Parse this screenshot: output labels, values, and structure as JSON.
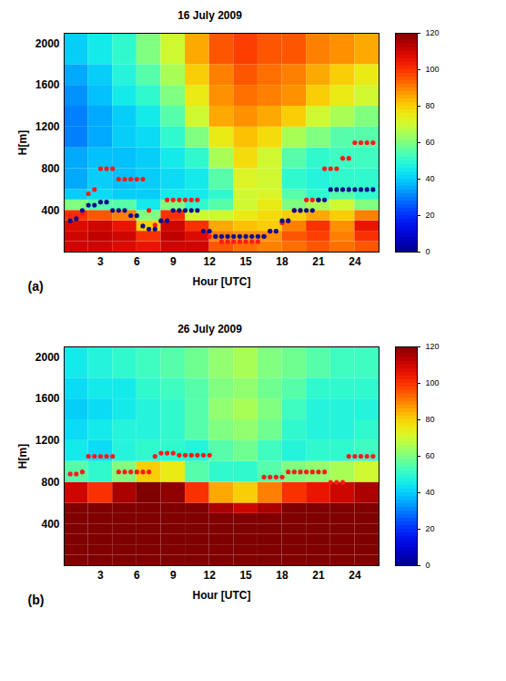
{
  "chart_data": [
    {
      "type": "heatmap",
      "title": "16 July 2009",
      "panel_label": "(a)",
      "x_label": "Hour [UTC]",
      "y_label": "H[m]",
      "xlim": [
        0,
        26
      ],
      "xticks": [
        3,
        6,
        9,
        12,
        15,
        18,
        21,
        24
      ],
      "ylim": [
        0,
        2100
      ],
      "yticks": [
        400,
        800,
        1200,
        1600,
        2000
      ],
      "x": [
        0.5,
        1,
        1.5,
        2,
        2.5,
        3,
        3.5,
        4,
        4.5,
        5,
        5.5,
        6,
        6.5,
        7,
        7.5,
        8,
        8.5,
        9,
        9.5,
        10,
        10.5,
        11,
        11.5,
        12,
        12.5,
        13,
        13.5,
        14,
        14.5,
        15,
        15.5,
        16,
        16.5,
        17,
        17.5,
        18,
        18.5,
        19,
        19.5,
        20,
        20.5,
        21,
        21.5,
        22,
        22.5,
        23,
        23.5,
        24,
        24.5,
        25,
        25.5
      ],
      "series": [
        {
          "color": "#ff1a1a",
          "marker": "circle",
          "values": [
            350,
            350,
            370,
            560,
            600,
            800,
            800,
            800,
            700,
            700,
            700,
            700,
            700,
            400,
            260,
            300,
            500,
            500,
            500,
            500,
            500,
            500,
            200,
            150,
            150,
            100,
            100,
            100,
            100,
            100,
            100,
            100,
            150,
            200,
            200,
            280,
            300,
            400,
            400,
            500,
            500,
            500,
            800,
            800,
            800,
            900,
            900,
            1050,
            1050,
            1050,
            1050
          ]
        },
        {
          "color": "#10108c",
          "marker": "circle",
          "values": [
            300,
            320,
            400,
            450,
            450,
            480,
            480,
            400,
            400,
            400,
            350,
            350,
            250,
            220,
            220,
            300,
            300,
            400,
            400,
            400,
            400,
            400,
            200,
            200,
            150,
            150,
            150,
            150,
            150,
            150,
            150,
            150,
            150,
            200,
            200,
            300,
            300,
            400,
            400,
            400,
            400,
            500,
            500,
            600,
            600,
            600,
            600,
            600,
            600,
            600,
            600
          ]
        }
      ],
      "heatmap": {
        "x_edges": [
          0,
          2,
          4,
          6,
          8,
          10,
          12,
          14,
          16,
          18,
          20,
          22,
          24,
          26
        ],
        "y_edges": [
          0,
          100,
          200,
          300,
          400,
          500,
          600,
          800,
          1000,
          1200,
          1400,
          1600,
          1800,
          2100
        ],
        "cells": [
          [
            110,
            110,
            108,
            105,
            110,
            110,
            95,
            92,
            90,
            92,
            95,
            92,
            95
          ],
          [
            110,
            112,
            110,
            100,
            112,
            108,
            90,
            88,
            88,
            95,
            98,
            90,
            100
          ],
          [
            108,
            110,
            105,
            80,
            110,
            100,
            85,
            82,
            80,
            90,
            100,
            88,
            105
          ],
          [
            100,
            95,
            90,
            60,
            100,
            70,
            70,
            75,
            78,
            80,
            85,
            80,
            90
          ],
          [
            60,
            55,
            55,
            45,
            60,
            50,
            55,
            70,
            75,
            60,
            65,
            70,
            60
          ],
          [
            40,
            42,
            40,
            40,
            45,
            45,
            50,
            70,
            72,
            55,
            50,
            55,
            50
          ],
          [
            35,
            40,
            38,
            40,
            42,
            45,
            55,
            72,
            70,
            50,
            48,
            50,
            50
          ],
          [
            35,
            38,
            38,
            40,
            45,
            50,
            65,
            78,
            70,
            55,
            50,
            52,
            52
          ],
          [
            30,
            35,
            40,
            42,
            50,
            60,
            75,
            82,
            78,
            65,
            60,
            55,
            55
          ],
          [
            30,
            35,
            40,
            45,
            55,
            70,
            85,
            88,
            85,
            80,
            70,
            65,
            60
          ],
          [
            32,
            38,
            45,
            50,
            60,
            75,
            88,
            92,
            90,
            88,
            80,
            75,
            70
          ],
          [
            35,
            40,
            48,
            55,
            65,
            80,
            90,
            95,
            92,
            90,
            85,
            80,
            75
          ],
          [
            40,
            45,
            50,
            60,
            70,
            85,
            95,
            98,
            95,
            95,
            90,
            88,
            85
          ]
        ]
      },
      "colorbar": {
        "range": [
          0,
          120
        ],
        "ticks": [
          0,
          20,
          40,
          60,
          80,
          100,
          120
        ]
      }
    },
    {
      "type": "heatmap",
      "title": "26 July 2009",
      "panel_label": "(b)",
      "x_label": "Hour [UTC]",
      "y_label": "H[m]",
      "xlim": [
        0,
        26
      ],
      "xticks": [
        3,
        6,
        9,
        12,
        15,
        18,
        21,
        24
      ],
      "ylim": [
        0,
        2100
      ],
      "yticks": [
        400,
        800,
        1200,
        1600,
        2000
      ],
      "x": [
        0.5,
        1,
        1.5,
        2,
        2.5,
        3,
        3.5,
        4,
        4.5,
        5,
        5.5,
        6,
        6.5,
        7,
        7.5,
        8,
        8.5,
        9,
        9.5,
        10,
        10.5,
        11,
        11.5,
        12,
        12.5,
        13,
        13.5,
        14,
        14.5,
        15,
        15.5,
        16,
        16.5,
        17,
        17.5,
        18,
        18.5,
        19,
        19.5,
        20,
        20.5,
        21,
        21.5,
        22,
        22.5,
        23,
        23.5,
        24,
        24.5,
        25,
        25.5
      ],
      "series": [
        {
          "color": "#ff1a1a",
          "marker": "circle",
          "values": [
            880,
            880,
            900,
            1050,
            1050,
            1050,
            1050,
            1050,
            900,
            900,
            900,
            900,
            900,
            900,
            1050,
            1080,
            1080,
            1080,
            1060,
            1060,
            1060,
            1060,
            1060,
            1060,
            null,
            null,
            null,
            null,
            null,
            null,
            null,
            null,
            850,
            850,
            850,
            850,
            900,
            900,
            900,
            900,
            900,
            900,
            900,
            800,
            800,
            800,
            1050,
            1050,
            1050,
            1050,
            1050
          ]
        }
      ],
      "heatmap": {
        "x_edges": [
          0,
          2,
          4,
          6,
          8,
          10,
          12,
          14,
          16,
          18,
          20,
          22,
          24,
          26
        ],
        "y_edges": [
          0,
          100,
          200,
          300,
          400,
          500,
          600,
          800,
          1000,
          1200,
          1400,
          1600,
          1800,
          2100
        ],
        "cells": [
          [
            120,
            120,
            120,
            120,
            120,
            120,
            120,
            120,
            120,
            120,
            120,
            120,
            120
          ],
          [
            120,
            120,
            120,
            120,
            120,
            120,
            120,
            120,
            120,
            120,
            120,
            120,
            120
          ],
          [
            120,
            120,
            120,
            120,
            120,
            120,
            120,
            120,
            120,
            120,
            120,
            120,
            120
          ],
          [
            120,
            120,
            120,
            120,
            120,
            120,
            120,
            120,
            120,
            120,
            120,
            120,
            120
          ],
          [
            120,
            120,
            120,
            120,
            120,
            120,
            120,
            120,
            120,
            120,
            120,
            120,
            120
          ],
          [
            120,
            120,
            120,
            120,
            120,
            120,
            115,
            110,
            115,
            120,
            120,
            120,
            120
          ],
          [
            110,
            100,
            115,
            120,
            118,
            100,
            85,
            80,
            90,
            100,
            105,
            110,
            115
          ],
          [
            55,
            50,
            60,
            80,
            75,
            55,
            50,
            50,
            55,
            60,
            62,
            65,
            70
          ],
          [
            45,
            42,
            48,
            50,
            50,
            48,
            55,
            58,
            52,
            48,
            50,
            50,
            52
          ],
          [
            42,
            45,
            48,
            48,
            50,
            55,
            60,
            62,
            58,
            50,
            48,
            48,
            50
          ],
          [
            40,
            42,
            45,
            48,
            50,
            55,
            62,
            65,
            60,
            52,
            48,
            48,
            48
          ],
          [
            42,
            45,
            45,
            50,
            52,
            55,
            60,
            62,
            58,
            55,
            50,
            50,
            50
          ],
          [
            45,
            48,
            50,
            52,
            55,
            58,
            62,
            65,
            60,
            58,
            55,
            52,
            52
          ]
        ]
      },
      "colorbar": {
        "range": [
          0,
          120
        ],
        "ticks": [
          0,
          20,
          40,
          60,
          80,
          100,
          120
        ]
      }
    }
  ]
}
